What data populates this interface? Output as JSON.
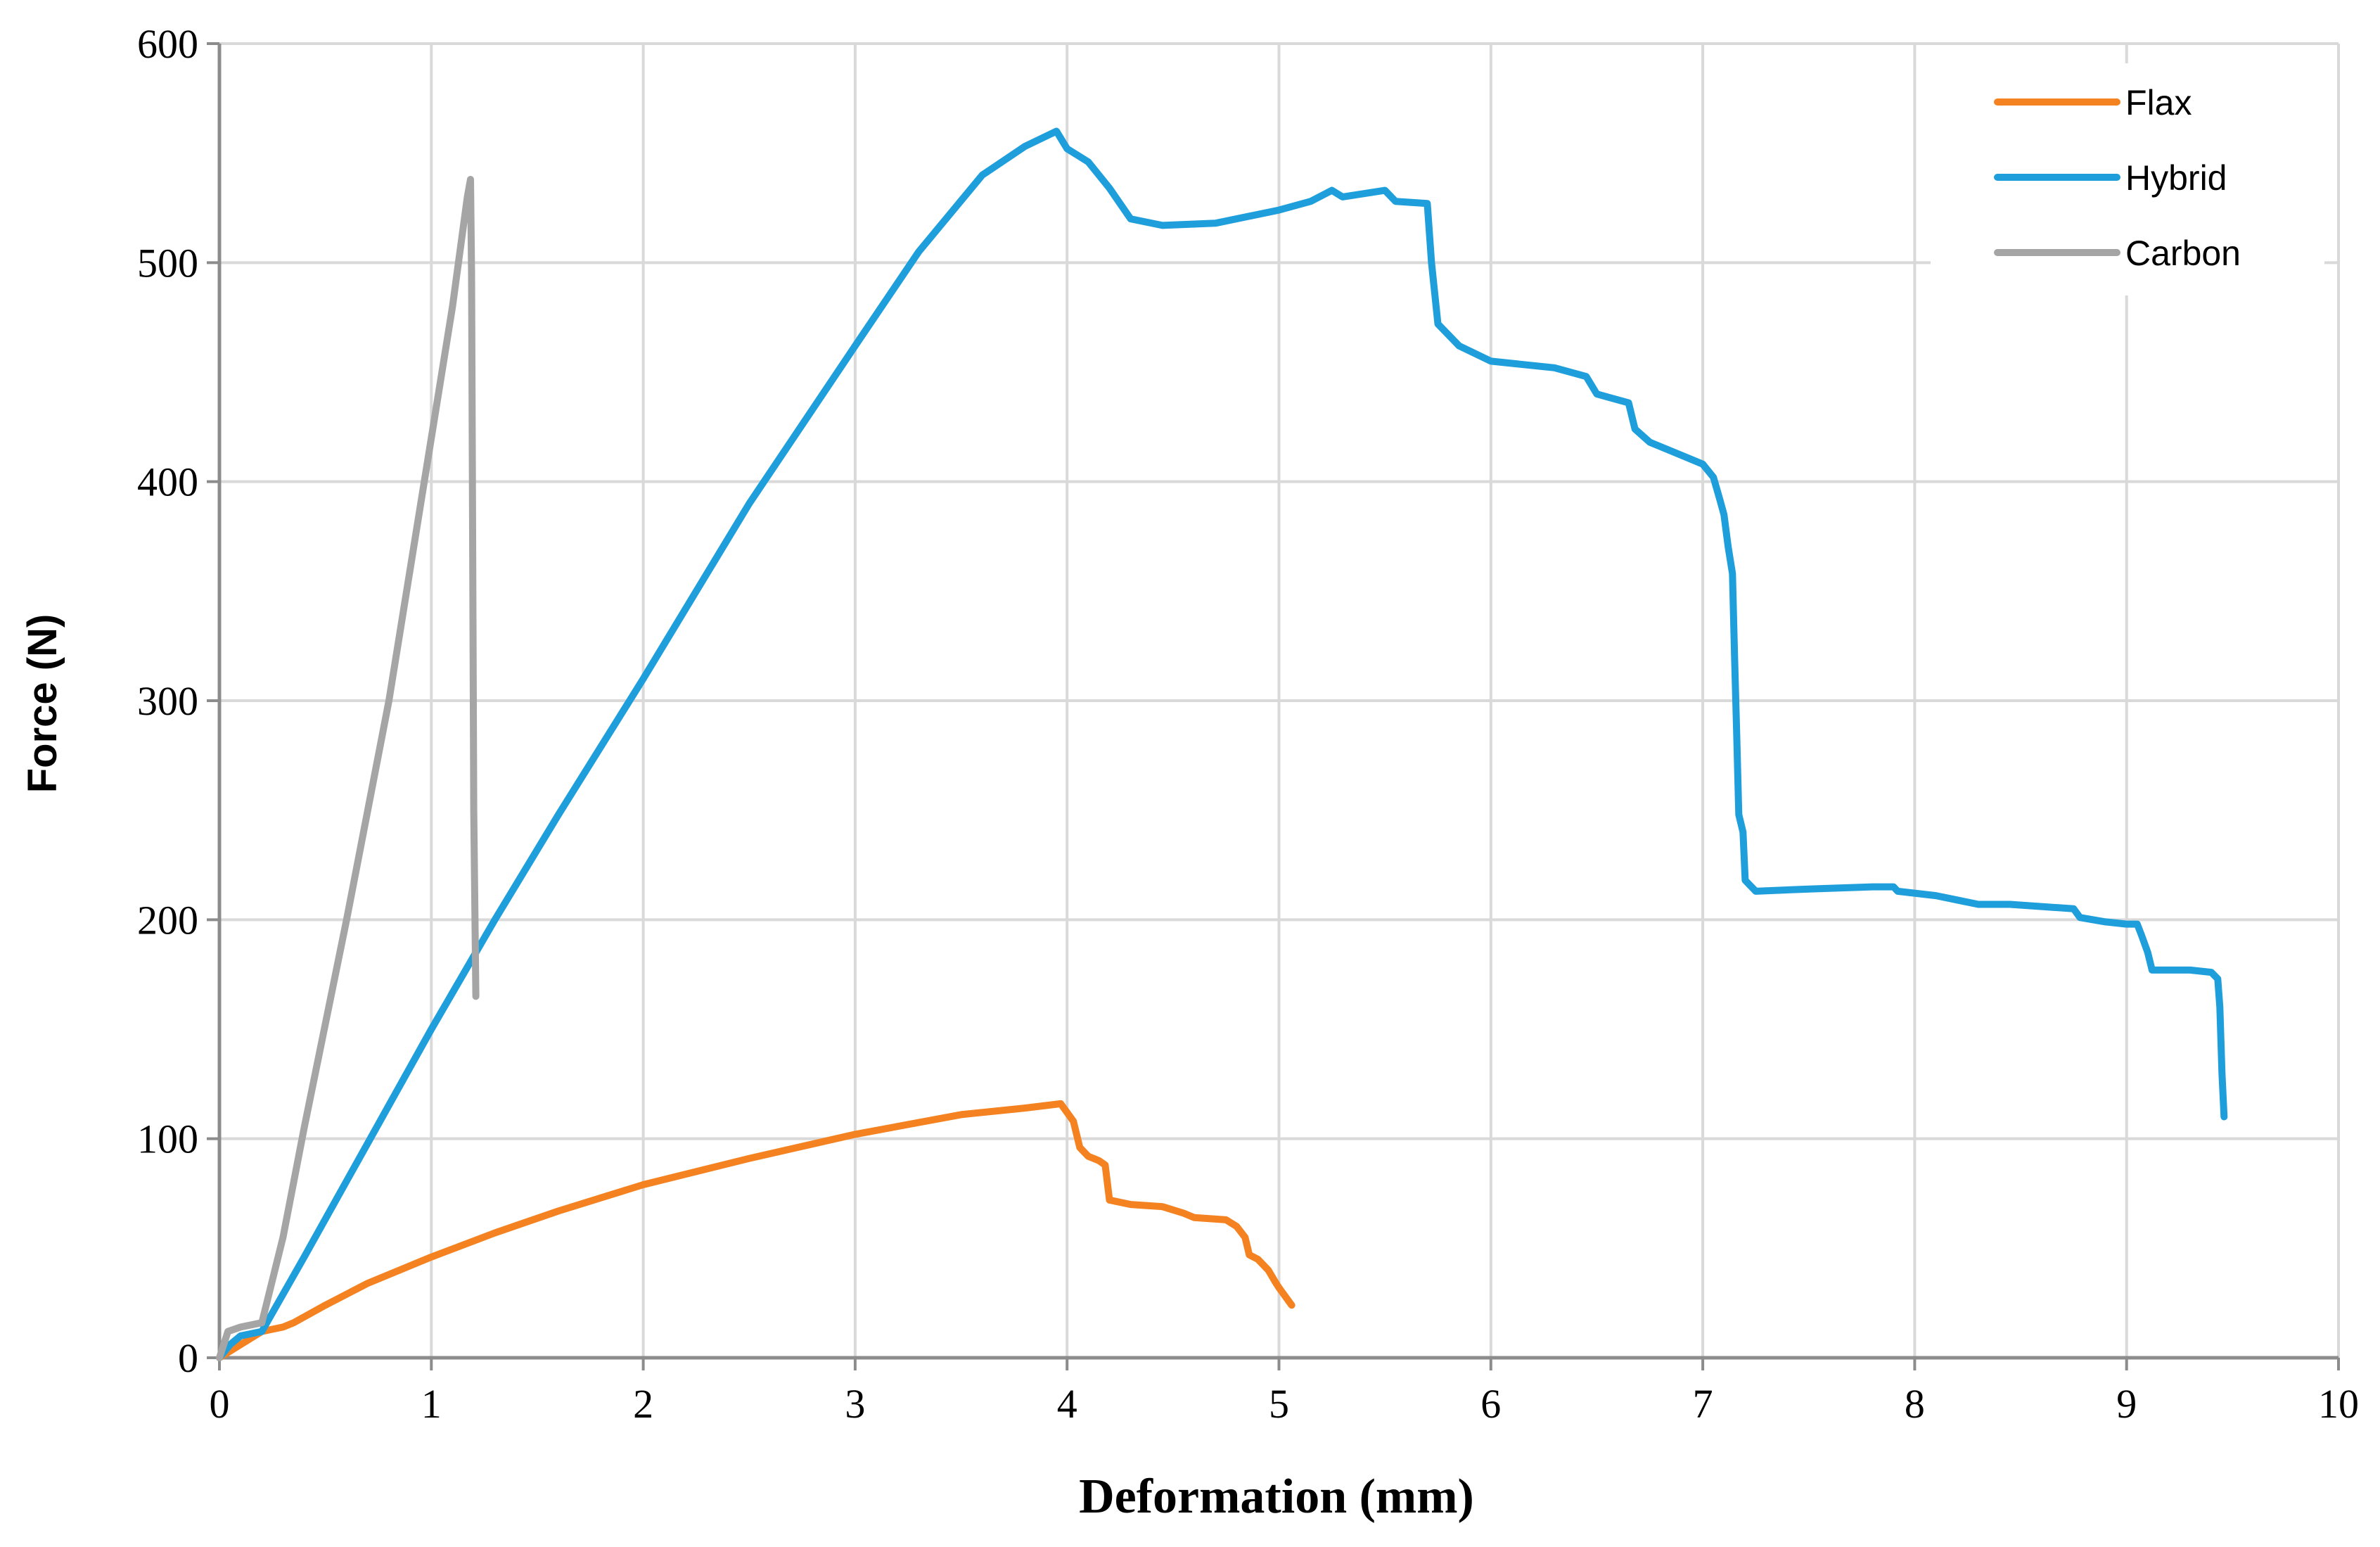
{
  "chart_data": {
    "type": "line",
    "title": "",
    "xlabel": "Deformation (mm)",
    "ylabel": "Force (N)",
    "xlim": [
      0,
      10
    ],
    "ylim": [
      0,
      600
    ],
    "x_ticks": [
      0,
      1,
      2,
      3,
      4,
      5,
      6,
      7,
      8,
      9,
      10
    ],
    "y_ticks": [
      0,
      100,
      200,
      300,
      400,
      500,
      600
    ],
    "grid": true,
    "legend_position": "top-right",
    "series": [
      {
        "name": "Flax",
        "color": "#f58220",
        "points": [
          [
            0,
            0
          ],
          [
            0.1,
            6
          ],
          [
            0.2,
            12
          ],
          [
            0.3,
            14
          ],
          [
            0.35,
            16
          ],
          [
            0.5,
            24
          ],
          [
            0.7,
            34
          ],
          [
            1.0,
            46
          ],
          [
            1.3,
            57
          ],
          [
            1.6,
            67
          ],
          [
            2.0,
            79
          ],
          [
            2.5,
            91
          ],
          [
            3.0,
            102
          ],
          [
            3.5,
            111
          ],
          [
            3.8,
            114
          ],
          [
            3.97,
            116
          ],
          [
            4.0,
            112
          ],
          [
            4.03,
            108
          ],
          [
            4.06,
            96
          ],
          [
            4.1,
            92
          ],
          [
            4.15,
            90
          ],
          [
            4.18,
            88
          ],
          [
            4.2,
            72
          ],
          [
            4.3,
            70
          ],
          [
            4.45,
            69
          ],
          [
            4.55,
            66
          ],
          [
            4.6,
            64
          ],
          [
            4.75,
            63
          ],
          [
            4.8,
            60
          ],
          [
            4.84,
            55
          ],
          [
            4.86,
            47
          ],
          [
            4.9,
            45
          ],
          [
            4.95,
            40
          ],
          [
            4.98,
            35
          ],
          [
            5.0,
            32
          ],
          [
            5.03,
            28
          ],
          [
            5.06,
            24
          ]
        ]
      },
      {
        "name": "Hybrid",
        "color": "#1e9fdc",
        "points": [
          [
            0,
            0
          ],
          [
            0.05,
            6
          ],
          [
            0.1,
            10
          ],
          [
            0.2,
            12
          ],
          [
            0.4,
            46
          ],
          [
            0.7,
            98
          ],
          [
            1.0,
            150
          ],
          [
            1.3,
            200
          ],
          [
            1.6,
            248
          ],
          [
            2.0,
            310
          ],
          [
            2.5,
            390
          ],
          [
            3.0,
            462
          ],
          [
            3.3,
            505
          ],
          [
            3.6,
            540
          ],
          [
            3.8,
            553
          ],
          [
            3.95,
            560
          ],
          [
            4.0,
            552
          ],
          [
            4.1,
            546
          ],
          [
            4.2,
            534
          ],
          [
            4.3,
            520
          ],
          [
            4.45,
            517
          ],
          [
            4.7,
            518
          ],
          [
            5.0,
            524
          ],
          [
            5.15,
            528
          ],
          [
            5.25,
            533
          ],
          [
            5.3,
            530
          ],
          [
            5.5,
            533
          ],
          [
            5.55,
            528
          ],
          [
            5.7,
            527
          ],
          [
            5.72,
            500
          ],
          [
            5.75,
            472
          ],
          [
            5.85,
            462
          ],
          [
            6.0,
            455
          ],
          [
            6.3,
            452
          ],
          [
            6.45,
            448
          ],
          [
            6.5,
            440
          ],
          [
            6.65,
            436
          ],
          [
            6.68,
            424
          ],
          [
            6.75,
            418
          ],
          [
            6.9,
            412
          ],
          [
            7.0,
            408
          ],
          [
            7.05,
            402
          ],
          [
            7.08,
            392
          ],
          [
            7.1,
            385
          ],
          [
            7.12,
            370
          ],
          [
            7.14,
            358
          ],
          [
            7.15,
            320
          ],
          [
            7.16,
            285
          ],
          [
            7.17,
            248
          ],
          [
            7.19,
            240
          ],
          [
            7.2,
            218
          ],
          [
            7.25,
            213
          ],
          [
            7.5,
            214
          ],
          [
            7.8,
            215
          ],
          [
            7.9,
            215
          ],
          [
            7.92,
            213
          ],
          [
            8.1,
            211
          ],
          [
            8.2,
            209
          ],
          [
            8.3,
            207
          ],
          [
            8.45,
            207
          ],
          [
            8.75,
            205
          ],
          [
            8.78,
            201
          ],
          [
            8.9,
            199
          ],
          [
            9.0,
            198
          ],
          [
            9.05,
            198
          ],
          [
            9.07,
            193
          ],
          [
            9.1,
            185
          ],
          [
            9.12,
            177
          ],
          [
            9.3,
            177
          ],
          [
            9.4,
            176
          ],
          [
            9.43,
            173
          ],
          [
            9.44,
            160
          ],
          [
            9.45,
            130
          ],
          [
            9.46,
            110
          ]
        ]
      },
      {
        "name": "Carbon",
        "color": "#a5a5a5",
        "points": [
          [
            0,
            0
          ],
          [
            0.04,
            12
          ],
          [
            0.1,
            14
          ],
          [
            0.2,
            16
          ],
          [
            0.3,
            55
          ],
          [
            0.4,
            105
          ],
          [
            0.6,
            200
          ],
          [
            0.8,
            300
          ],
          [
            1.0,
            420
          ],
          [
            1.1,
            480
          ],
          [
            1.17,
            530
          ],
          [
            1.185,
            538
          ],
          [
            1.19,
            495
          ],
          [
            1.2,
            250
          ],
          [
            1.21,
            165
          ]
        ]
      }
    ]
  }
}
